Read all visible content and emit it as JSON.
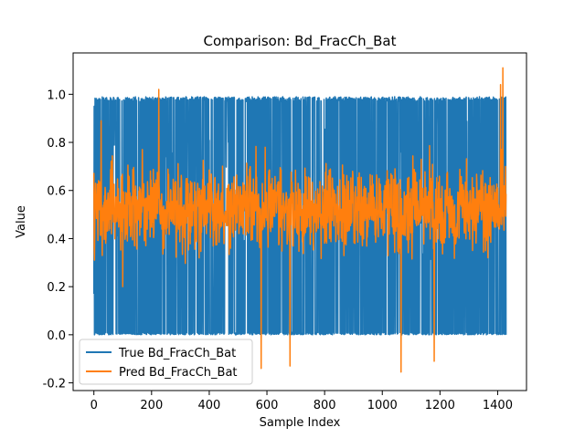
{
  "chart_data": {
    "type": "line",
    "title": "Comparison: Bd_FracCh_Bat",
    "xlabel": "Sample Index",
    "ylabel": "Value",
    "xlim": [
      -72,
      1500
    ],
    "ylim": [
      -0.232,
      1.172
    ],
    "xticks": [
      0,
      200,
      400,
      600,
      800,
      1000,
      1200,
      1400
    ],
    "yticks": [
      -0.2,
      0.0,
      0.2,
      0.4,
      0.6,
      0.8,
      1.0
    ],
    "grid": false,
    "legend": "bottom-left",
    "n_samples": 1430,
    "series": [
      {
        "name": "True Bd_FracCh_Bat",
        "color": "#1f77b4",
        "description": "values alternate rapidly between about 0.0 and 0.99 across all samples",
        "min": 0.0,
        "max": 0.99
      },
      {
        "name": "Pred Bd_FracCh_Bat",
        "color": "#ff7f0e",
        "description": "noisy band mostly between 0.35 and 0.7 with occasional spikes",
        "spikes": [
          {
            "x": 2,
            "y": 0.31
          },
          {
            "x": 25,
            "y": 0.89
          },
          {
            "x": 100,
            "y": 0.2
          },
          {
            "x": 225,
            "y": 1.02
          },
          {
            "x": 580,
            "y": -0.14
          },
          {
            "x": 680,
            "y": -0.13
          },
          {
            "x": 1065,
            "y": -0.155
          },
          {
            "x": 1180,
            "y": -0.11
          },
          {
            "x": 1410,
            "y": 1.04
          },
          {
            "x": 1418,
            "y": 1.11
          }
        ]
      }
    ]
  }
}
